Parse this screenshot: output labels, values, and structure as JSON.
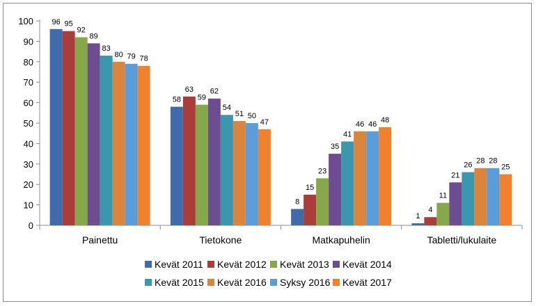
{
  "chart_data": {
    "type": "bar",
    "categories": [
      "Painettu",
      "Tietokone",
      "Matkapuhelin",
      "Tabletti/lukulaite"
    ],
    "series": [
      {
        "name": "Kevät 2011",
        "color": "#3f6bab",
        "values": [
          96,
          58,
          8,
          1
        ]
      },
      {
        "name": "Kevät 2012",
        "color": "#a93d3a",
        "values": [
          95,
          63,
          15,
          4
        ]
      },
      {
        "name": "Kevät 2013",
        "color": "#87a84a",
        "values": [
          92,
          59,
          23,
          11
        ]
      },
      {
        "name": "Kevät 2014",
        "color": "#6d4d91",
        "values": [
          89,
          62,
          35,
          21
        ]
      },
      {
        "name": "Kevät 2015",
        "color": "#3a97ad",
        "values": [
          83,
          54,
          41,
          26
        ]
      },
      {
        "name": "Kevät 2016",
        "color": "#db843d",
        "values": [
          80,
          51,
          46,
          28
        ]
      },
      {
        "name": "Syksy 2016",
        "color": "#5b9ddb",
        "values": [
          79,
          50,
          46,
          28
        ]
      },
      {
        "name": "Kevät 2017",
        "color": "#f0812f",
        "values": [
          78,
          47,
          48,
          25
        ]
      }
    ],
    "ylim": [
      0,
      100
    ],
    "yticks": [
      0,
      10,
      20,
      30,
      40,
      50,
      60,
      70,
      80,
      90,
      100
    ],
    "grid": false,
    "legend_position": "bottom",
    "data_labels": true
  }
}
